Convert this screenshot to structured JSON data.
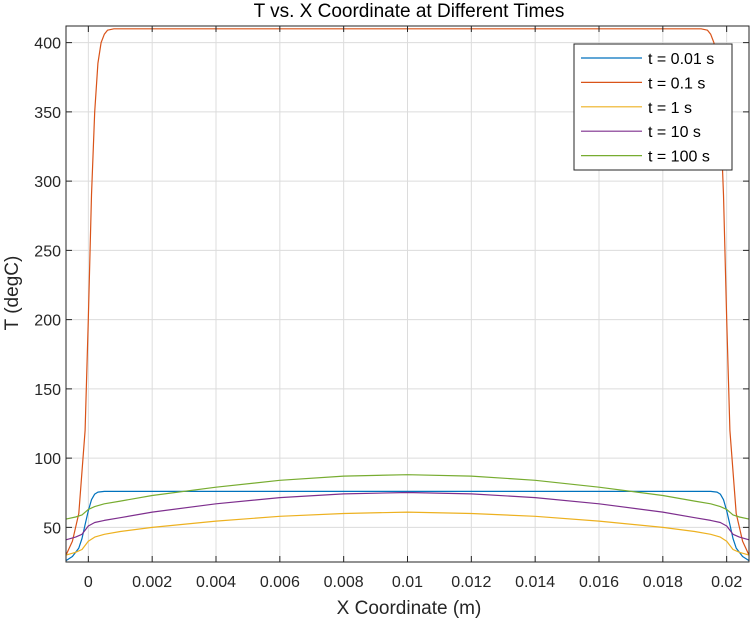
{
  "chart_data": {
    "type": "line",
    "title": "T vs. X Coordinate at Different Times",
    "xlabel": "X Coordinate (m)",
    "ylabel": "T (degC)",
    "xlim": [
      -0.0007,
      0.0207
    ],
    "ylim": [
      25,
      412
    ],
    "xticks": [
      0,
      0.002,
      0.004,
      0.006,
      0.008,
      0.01,
      0.012,
      0.014,
      0.016,
      0.018,
      0.02
    ],
    "xtick_labels": [
      "0",
      "0.002",
      "0.004",
      "0.006",
      "0.008",
      "0.01",
      "0.012",
      "0.014",
      "0.016",
      "0.018",
      "0.02"
    ],
    "yticks": [
      50,
      100,
      150,
      200,
      250,
      300,
      350,
      400
    ],
    "ytick_labels": [
      "50",
      "100",
      "150",
      "200",
      "250",
      "300",
      "350",
      "400"
    ],
    "grid": true,
    "legend_position": "top-right",
    "series": [
      {
        "name": "t = 0.01 s",
        "color": "#0072BD",
        "x": [
          -0.0007,
          -0.0005,
          -0.0003,
          -0.0002,
          -0.0001,
          0,
          0.0001,
          0.0002,
          0.0003,
          0.0005,
          0.0008,
          0.001,
          0.005,
          0.01,
          0.015,
          0.019,
          0.0192,
          0.0195,
          0.0197,
          0.0198,
          0.0199,
          0.02,
          0.0201,
          0.0202,
          0.0203,
          0.0205,
          0.0207
        ],
        "y": [
          26,
          29,
          35,
          42,
          52,
          62,
          70,
          74,
          75.5,
          76,
          76,
          76,
          76,
          76,
          76,
          76,
          76,
          76,
          75.5,
          74,
          70,
          62,
          52,
          42,
          35,
          29,
          26
        ]
      },
      {
        "name": "t = 0.1 s",
        "color": "#D95319",
        "x": [
          -0.0007,
          -0.0005,
          -0.0003,
          -0.0001,
          0,
          0.0001,
          0.0002,
          0.0003,
          0.0004,
          0.0005,
          0.0006,
          0.0008,
          0.001,
          0.005,
          0.01,
          0.015,
          0.019,
          0.0192,
          0.0194,
          0.0195,
          0.0196,
          0.0197,
          0.0198,
          0.0199,
          0.02,
          0.0201,
          0.0203,
          0.0205,
          0.0207
        ],
        "y": [
          30,
          40,
          60,
          120,
          200,
          290,
          350,
          385,
          400,
          406,
          409,
          410,
          410,
          410,
          410,
          410,
          410,
          410,
          409,
          406,
          400,
          385,
          350,
          290,
          200,
          120,
          60,
          40,
          30
        ]
      },
      {
        "name": "t = 1 s",
        "color": "#EDB120",
        "x": [
          -0.0007,
          -0.0004,
          -0.0002,
          0,
          0.0002,
          0.0005,
          0.001,
          0.002,
          0.004,
          0.006,
          0.008,
          0.01,
          0.012,
          0.014,
          0.016,
          0.018,
          0.019,
          0.0195,
          0.0198,
          0.02,
          0.0202,
          0.0204,
          0.0207
        ],
        "y": [
          30,
          32,
          34,
          40,
          43,
          45,
          47,
          50,
          54.5,
          58,
          60,
          61,
          60,
          58,
          54.5,
          50,
          47,
          45,
          43,
          40,
          34,
          32,
          30
        ]
      },
      {
        "name": "t = 10 s",
        "color": "#7E2F8E",
        "x": [
          -0.0007,
          -0.0004,
          -0.0002,
          0,
          0.0002,
          0.0005,
          0.001,
          0.002,
          0.004,
          0.006,
          0.008,
          0.01,
          0.012,
          0.014,
          0.016,
          0.018,
          0.019,
          0.0195,
          0.0198,
          0.02,
          0.0202,
          0.0204,
          0.0207
        ],
        "y": [
          41,
          43,
          45,
          51,
          53.5,
          55,
          57,
          61,
          67,
          71.5,
          74.2,
          75.2,
          74.2,
          71.5,
          67,
          61,
          57,
          55,
          53.5,
          51,
          45,
          43,
          41
        ]
      },
      {
        "name": "t = 100 s",
        "color": "#77AC30",
        "x": [
          -0.0007,
          -0.0004,
          -0.0002,
          0,
          0.0002,
          0.0005,
          0.001,
          0.002,
          0.004,
          0.006,
          0.008,
          0.01,
          0.012,
          0.014,
          0.016,
          0.018,
          0.019,
          0.0195,
          0.0198,
          0.02,
          0.0202,
          0.0204,
          0.0207
        ],
        "y": [
          56,
          57.5,
          59,
          63,
          65,
          67,
          69,
          73,
          79,
          84,
          87,
          88,
          87,
          84,
          79,
          73,
          69,
          67,
          65,
          63,
          59,
          57.5,
          56
        ]
      }
    ]
  }
}
